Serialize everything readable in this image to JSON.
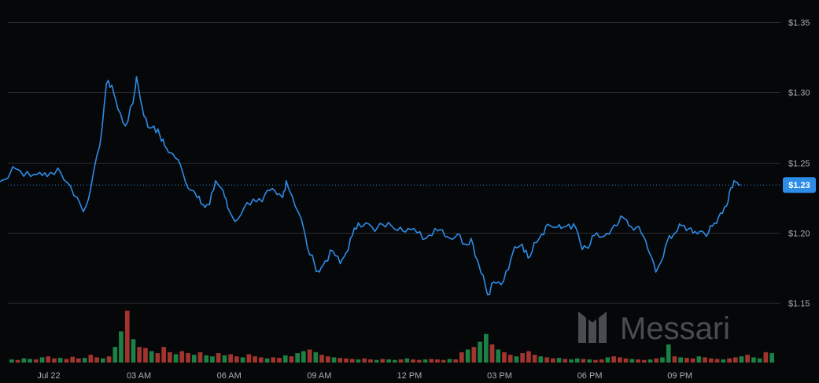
{
  "chart_data": {
    "type": "line",
    "y_unit": "$",
    "ylim": [
      1.125,
      1.36
    ],
    "y_ticks": [
      {
        "value": 1.35,
        "label": "$1.35"
      },
      {
        "value": 1.3,
        "label": "$1.30"
      },
      {
        "value": 1.25,
        "label": "$1.25"
      },
      {
        "value": 1.2,
        "label": "$1.20"
      },
      {
        "value": 1.15,
        "label": "$1.15"
      }
    ],
    "x_range_hours": [
      -2.0,
      24.0
    ],
    "x_ticks": [
      {
        "hour": 0,
        "label": "Jul 22"
      },
      {
        "hour": 3,
        "label": "03 AM"
      },
      {
        "hour": 6,
        "label": "06 AM"
      },
      {
        "hour": 9,
        "label": "09 AM"
      },
      {
        "hour": 12,
        "label": "12 PM"
      },
      {
        "hour": 15,
        "label": "03 PM"
      },
      {
        "hour": 18,
        "label": "06 PM"
      },
      {
        "hour": 21,
        "label": "09 PM"
      }
    ],
    "current_price": {
      "value": 1.234,
      "label": "$1.23"
    },
    "grid": true,
    "price_keypoints": [
      [
        -1.75,
        1.235
      ],
      [
        -1.45,
        1.238
      ],
      [
        -1.2,
        1.247
      ],
      [
        -0.95,
        1.244
      ],
      [
        -0.6,
        1.24
      ],
      [
        -0.3,
        1.243
      ],
      [
        -0.05,
        1.24
      ],
      [
        0.3,
        1.246
      ],
      [
        0.6,
        1.236
      ],
      [
        0.95,
        1.225
      ],
      [
        1.15,
        1.215
      ],
      [
        1.4,
        1.232
      ],
      [
        1.7,
        1.262
      ],
      [
        1.92,
        1.306
      ],
      [
        2.1,
        1.305
      ],
      [
        2.3,
        1.288
      ],
      [
        2.55,
        1.276
      ],
      [
        2.8,
        1.292
      ],
      [
        2.92,
        1.311
      ],
      [
        3.1,
        1.29
      ],
      [
        3.3,
        1.275
      ],
      [
        3.5,
        1.276
      ],
      [
        3.7,
        1.269
      ],
      [
        3.85,
        1.262
      ],
      [
        4.05,
        1.257
      ],
      [
        4.3,
        1.252
      ],
      [
        4.55,
        1.236
      ],
      [
        4.8,
        1.23
      ],
      [
        5.0,
        1.226
      ],
      [
        5.2,
        1.218
      ],
      [
        5.35,
        1.22
      ],
      [
        5.55,
        1.237
      ],
      [
        5.8,
        1.23
      ],
      [
        5.95,
        1.218
      ],
      [
        6.2,
        1.208
      ],
      [
        6.5,
        1.218
      ],
      [
        6.8,
        1.224
      ],
      [
        7.1,
        1.222
      ],
      [
        7.35,
        1.23
      ],
      [
        7.6,
        1.227
      ],
      [
        7.78,
        1.225
      ],
      [
        7.9,
        1.237
      ],
      [
        8.1,
        1.226
      ],
      [
        8.4,
        1.21
      ],
      [
        8.6,
        1.19
      ],
      [
        8.85,
        1.177
      ],
      [
        9.0,
        1.172
      ],
      [
        9.2,
        1.18
      ],
      [
        9.45,
        1.187
      ],
      [
        9.7,
        1.178
      ],
      [
        9.9,
        1.186
      ],
      [
        10.1,
        1.198
      ],
      [
        10.3,
        1.207
      ],
      [
        10.55,
        1.207
      ],
      [
        10.85,
        1.201
      ],
      [
        11.1,
        1.206
      ],
      [
        11.4,
        1.205
      ],
      [
        11.7,
        1.204
      ],
      [
        11.95,
        1.203
      ],
      [
        12.25,
        1.2
      ],
      [
        12.55,
        1.196
      ],
      [
        12.85,
        1.203
      ],
      [
        13.1,
        1.202
      ],
      [
        13.35,
        1.196
      ],
      [
        13.6,
        1.199
      ],
      [
        13.85,
        1.192
      ],
      [
        14.05,
        1.196
      ],
      [
        14.25,
        1.181
      ],
      [
        14.45,
        1.17
      ],
      [
        14.6,
        1.156
      ],
      [
        14.8,
        1.165
      ],
      [
        15.05,
        1.163
      ],
      [
        15.3,
        1.174
      ],
      [
        15.5,
        1.19
      ],
      [
        15.75,
        1.192
      ],
      [
        15.95,
        1.182
      ],
      [
        16.15,
        1.193
      ],
      [
        16.4,
        1.199
      ],
      [
        16.6,
        1.206
      ],
      [
        16.85,
        1.204
      ],
      [
        17.05,
        1.203
      ],
      [
        17.3,
        1.206
      ],
      [
        17.55,
        1.203
      ],
      [
        17.75,
        1.188
      ],
      [
        17.95,
        1.189
      ],
      [
        18.15,
        1.198
      ],
      [
        18.4,
        1.197
      ],
      [
        18.65,
        1.199
      ],
      [
        18.9,
        1.205
      ],
      [
        19.1,
        1.211
      ],
      [
        19.3,
        1.205
      ],
      [
        19.55,
        1.204
      ],
      [
        19.8,
        1.197
      ],
      [
        20.0,
        1.185
      ],
      [
        20.2,
        1.172
      ],
      [
        20.45,
        1.183
      ],
      [
        20.65,
        1.198
      ],
      [
        20.85,
        1.2
      ],
      [
        21.05,
        1.205
      ],
      [
        21.3,
        1.203
      ],
      [
        21.5,
        1.201
      ],
      [
        21.75,
        1.201
      ],
      [
        21.95,
        1.2
      ],
      [
        22.15,
        1.207
      ],
      [
        22.35,
        1.214
      ],
      [
        22.55,
        1.219
      ],
      [
        22.7,
        1.232
      ],
      [
        22.85,
        1.236
      ],
      [
        23.0,
        1.234
      ]
    ],
    "volume_rel": [
      0.06,
      0.05,
      0.08,
      0.07,
      0.06,
      0.1,
      0.12,
      0.08,
      0.09,
      0.07,
      0.11,
      0.08,
      0.09,
      0.15,
      0.1,
      0.08,
      0.12,
      0.3,
      0.6,
      1.0,
      0.45,
      0.3,
      0.28,
      0.22,
      0.18,
      0.3,
      0.2,
      0.16,
      0.22,
      0.18,
      0.15,
      0.2,
      0.14,
      0.12,
      0.18,
      0.14,
      0.16,
      0.12,
      0.1,
      0.16,
      0.12,
      0.1,
      0.08,
      0.1,
      0.09,
      0.14,
      0.12,
      0.18,
      0.22,
      0.25,
      0.2,
      0.15,
      0.12,
      0.1,
      0.09,
      0.08,
      0.07,
      0.06,
      0.08,
      0.06,
      0.05,
      0.07,
      0.06,
      0.05,
      0.06,
      0.08,
      0.06,
      0.05,
      0.06,
      0.07,
      0.06,
      0.05,
      0.07,
      0.06,
      0.2,
      0.25,
      0.3,
      0.4,
      0.55,
      0.35,
      0.25,
      0.2,
      0.15,
      0.12,
      0.18,
      0.22,
      0.15,
      0.12,
      0.1,
      0.08,
      0.09,
      0.07,
      0.06,
      0.08,
      0.07,
      0.06,
      0.05,
      0.06,
      0.1,
      0.12,
      0.1,
      0.08,
      0.07,
      0.06,
      0.05,
      0.06,
      0.08,
      0.1,
      0.35,
      0.12,
      0.1,
      0.09,
      0.08,
      0.12,
      0.1,
      0.08,
      0.07,
      0.06,
      0.08,
      0.1,
      0.12,
      0.15,
      0.1,
      0.08,
      0.2,
      0.18
    ],
    "colors": {
      "background": "#060709",
      "grid": "#2a2c31",
      "line": "#2d8ce6",
      "price_tag": "#2d8ce6",
      "current_line": "#2d8ce6",
      "volume_up": "#1e8f4c",
      "volume_down": "#b33a32",
      "tick_text": "#a9abb3",
      "watermark": "#4a4c52"
    }
  },
  "watermark": {
    "text": "Messari",
    "icon": "messari-logo-icon"
  }
}
